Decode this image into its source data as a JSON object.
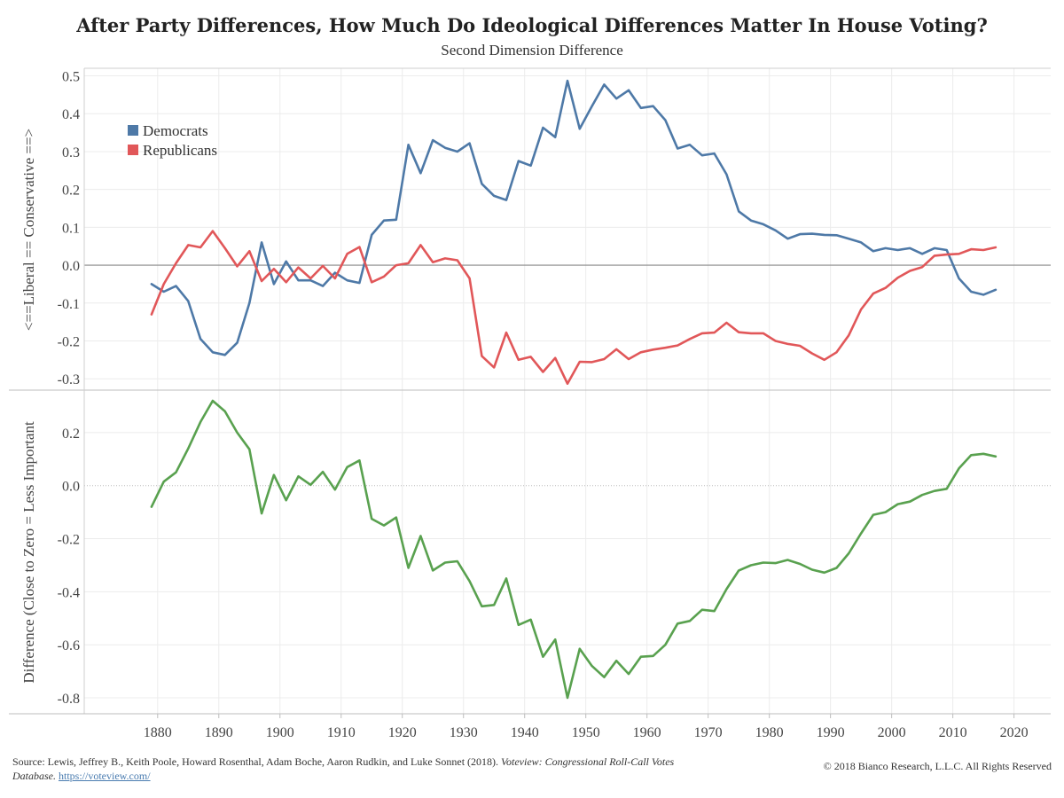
{
  "title": "After Party Differences, How Much Do Ideological Differences Matter In House Voting?",
  "subtitle": "Second Dimension Difference",
  "source": {
    "prefix": "Source: Lewis, Jeffrey B., Keith Poole, Howard Rosenthal, Adam Boche, Aaron Rudkin, and Luke Sonnet (2018).",
    "italic": "Voteview: Congressional Roll-Call Votes Database.",
    "link": "https://voteview.com/"
  },
  "copyright": "© 2018 Bianco Research, L.L.C. All Rights Reserved",
  "colors": {
    "democrats": "#4e79a7",
    "republicans": "#e15759",
    "difference": "#59a14f"
  },
  "chart_data": [
    {
      "type": "line",
      "ylabel": "<==Liberal == Conservative ==>",
      "ylim": [
        -0.33,
        0.52
      ],
      "yticks": [
        -0.3,
        -0.2,
        -0.1,
        0.0,
        0.1,
        0.2,
        0.3,
        0.4,
        0.5
      ],
      "ytick_labels": [
        "-0.3",
        "-0.2",
        "-0.1",
        "0.0",
        "0.1",
        "0.2",
        "0.3",
        "0.4",
        "0.5"
      ],
      "legend_position": "top-left",
      "zero_line": true,
      "x": [
        1879,
        1881,
        1883,
        1885,
        1887,
        1889,
        1891,
        1893,
        1895,
        1897,
        1899,
        1901,
        1903,
        1905,
        1907,
        1909,
        1911,
        1913,
        1915,
        1917,
        1919,
        1921,
        1923,
        1925,
        1927,
        1929,
        1931,
        1933,
        1935,
        1937,
        1939,
        1941,
        1943,
        1945,
        1947,
        1949,
        1951,
        1953,
        1955,
        1957,
        1959,
        1961,
        1963,
        1965,
        1967,
        1969,
        1971,
        1973,
        1975,
        1977,
        1979,
        1981,
        1983,
        1985,
        1987,
        1989,
        1991,
        1993,
        1995,
        1997,
        1999,
        2001,
        2003,
        2005,
        2007,
        2009,
        2011,
        2013,
        2015,
        2017
      ],
      "series": [
        {
          "name": "Democrats",
          "values": [
            -0.05,
            -0.07,
            -0.055,
            -0.095,
            -0.195,
            -0.23,
            -0.237,
            -0.205,
            -0.1,
            0.06,
            -0.05,
            0.01,
            -0.04,
            -0.04,
            -0.055,
            -0.02,
            -0.04,
            -0.047,
            0.08,
            0.118,
            0.12,
            0.318,
            0.243,
            0.33,
            0.31,
            0.3,
            0.322,
            0.215,
            0.183,
            0.172,
            0.275,
            0.263,
            0.363,
            0.338,
            0.487,
            0.36,
            0.42,
            0.477,
            0.44,
            0.462,
            0.415,
            0.42,
            0.383,
            0.308,
            0.318,
            0.29,
            0.295,
            0.24,
            0.142,
            0.118,
            0.108,
            0.092,
            0.07,
            0.082,
            0.083,
            0.08,
            0.079,
            0.07,
            0.06,
            0.037,
            0.045,
            0.04,
            0.045,
            0.03,
            0.045,
            0.04,
            -0.035,
            -0.07,
            -0.078,
            -0.065
          ]
        },
        {
          "name": "Republicans",
          "values": [
            -0.13,
            -0.05,
            0.005,
            0.053,
            0.047,
            0.09,
            0.045,
            -0.003,
            0.037,
            -0.042,
            -0.01,
            -0.045,
            -0.006,
            -0.035,
            -0.002,
            -0.035,
            0.03,
            0.048,
            -0.045,
            -0.03,
            0.0,
            0.005,
            0.053,
            0.008,
            0.018,
            0.013,
            -0.035,
            -0.24,
            -0.27,
            -0.178,
            -0.25,
            -0.242,
            -0.282,
            -0.245,
            -0.313,
            -0.255,
            -0.256,
            -0.248,
            -0.222,
            -0.248,
            -0.23,
            -0.223,
            -0.218,
            -0.212,
            -0.195,
            -0.18,
            -0.178,
            -0.152,
            -0.177,
            -0.18,
            -0.18,
            -0.2,
            -0.208,
            -0.213,
            -0.233,
            -0.25,
            -0.23,
            -0.185,
            -0.117,
            -0.075,
            -0.06,
            -0.033,
            -0.015,
            -0.005,
            0.025,
            0.028,
            0.03,
            0.042,
            0.04,
            0.047
          ]
        }
      ]
    },
    {
      "type": "line",
      "ylabel": "Difference (Close to Zero = Less Important",
      "ylim": [
        -0.86,
        0.36
      ],
      "yticks": [
        -0.8,
        -0.6,
        -0.4,
        -0.2,
        0.0,
        0.2
      ],
      "ytick_labels": [
        "-0.8",
        "-0.6",
        "-0.4",
        "-0.2",
        "0.0",
        "0.2"
      ],
      "zero_line": true,
      "x": [
        1879,
        1881,
        1883,
        1885,
        1887,
        1889,
        1891,
        1893,
        1895,
        1897,
        1899,
        1901,
        1903,
        1905,
        1907,
        1909,
        1911,
        1913,
        1915,
        1917,
        1919,
        1921,
        1923,
        1925,
        1927,
        1929,
        1931,
        1933,
        1935,
        1937,
        1939,
        1941,
        1943,
        1945,
        1947,
        1949,
        1951,
        1953,
        1955,
        1957,
        1959,
        1961,
        1963,
        1965,
        1967,
        1969,
        1971,
        1973,
        1975,
        1977,
        1979,
        1981,
        1983,
        1985,
        1987,
        1989,
        1991,
        1993,
        1995,
        1997,
        1999,
        2001,
        2003,
        2005,
        2007,
        2009,
        2011,
        2013,
        2015,
        2017
      ],
      "series": [
        {
          "name": "",
          "values": [
            -0.08,
            0.015,
            0.05,
            0.14,
            0.24,
            0.32,
            0.28,
            0.2,
            0.137,
            -0.105,
            0.04,
            -0.055,
            0.035,
            0.003,
            0.052,
            -0.015,
            0.07,
            0.095,
            -0.125,
            -0.15,
            -0.12,
            -0.31,
            -0.19,
            -0.32,
            -0.29,
            -0.285,
            -0.36,
            -0.455,
            -0.45,
            -0.35,
            -0.525,
            -0.505,
            -0.645,
            -0.58,
            -0.8,
            -0.615,
            -0.68,
            -0.722,
            -0.66,
            -0.71,
            -0.645,
            -0.642,
            -0.6,
            -0.52,
            -0.51,
            -0.468,
            -0.473,
            -0.39,
            -0.32,
            -0.3,
            -0.29,
            -0.292,
            -0.28,
            -0.295,
            -0.317,
            -0.328,
            -0.31,
            -0.255,
            -0.18,
            -0.11,
            -0.1,
            -0.07,
            -0.06,
            -0.035,
            -0.02,
            -0.012,
            0.065,
            0.115,
            0.12,
            0.11
          ]
        }
      ]
    }
  ],
  "x_axis": {
    "ticks": [
      1880,
      1890,
      1900,
      1910,
      1920,
      1930,
      1940,
      1950,
      1960,
      1970,
      1980,
      1990,
      2000,
      2010,
      2020
    ],
    "labels": [
      "1880",
      "1890",
      "1900",
      "1910",
      "1920",
      "1930",
      "1940",
      "1950",
      "1960",
      "1970",
      "1980",
      "1990",
      "2000",
      "2010",
      "2020"
    ],
    "xlim": [
      1868,
      2026
    ]
  }
}
